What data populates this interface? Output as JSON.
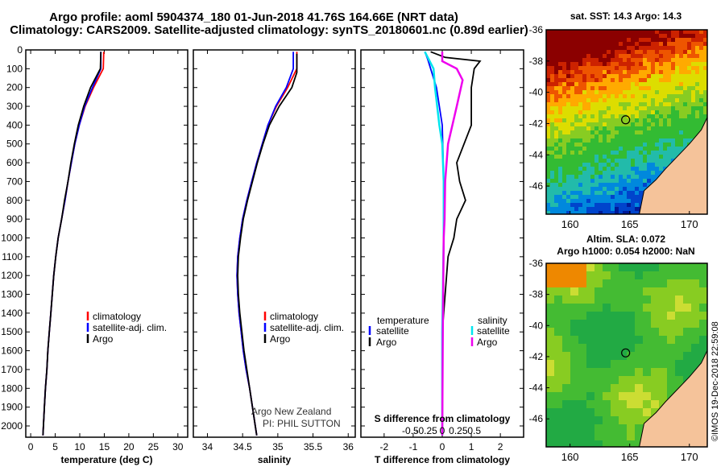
{
  "header": {
    "line1": "Argo profile: aoml 5904374_180 01-Jun-2018 41.76S 164.66E (NRT data)",
    "line2": "Climatology: CARS2009. Satellite-adjusted climatology: synTS_20180601.nc (0.89d earlier)"
  },
  "colors": {
    "climatology": "#ff0000",
    "satellite": "#0000ff",
    "argo": "#000000",
    "salinity_satellite": "#00e5ee",
    "salinity_argo": "#ee00ee"
  },
  "depth_axis": {
    "ticks": [
      "0",
      "100",
      "200",
      "300",
      "400",
      "500",
      "600",
      "700",
      "800",
      "900",
      "1000",
      "1100",
      "1200",
      "1300",
      "1400",
      "1500",
      "1600",
      "1700",
      "1800",
      "1900",
      "2000"
    ],
    "ylim": [
      0,
      2060
    ]
  },
  "chart_data": [
    {
      "type": "line",
      "panel": "temperature",
      "xlabel": "temperature (deg C)",
      "xlim": [
        -1,
        32
      ],
      "xticks": [
        "0",
        "5",
        "10",
        "15",
        "20",
        "25",
        "30"
      ],
      "legend": [
        "climatology",
        "satellite-adj. clim.",
        "Argo"
      ],
      "series": [
        {
          "name": "climatology",
          "color": "red",
          "points": [
            [
              14.9,
              10
            ],
            [
              14.8,
              100
            ],
            [
              12.8,
              200
            ],
            [
              11.1,
              300
            ],
            [
              9.9,
              400
            ],
            [
              9.0,
              500
            ],
            [
              8.3,
              600
            ],
            [
              7.6,
              700
            ],
            [
              7.0,
              800
            ],
            [
              6.3,
              900
            ],
            [
              5.6,
              1000
            ],
            [
              5.1,
              1100
            ],
            [
              4.7,
              1200
            ],
            [
              4.4,
              1300
            ],
            [
              4.1,
              1400
            ],
            [
              3.8,
              1500
            ],
            [
              3.5,
              1600
            ],
            [
              3.3,
              1700
            ],
            [
              3.0,
              1800
            ],
            [
              2.8,
              1900
            ],
            [
              2.6,
              2000
            ],
            [
              2.5,
              2050
            ]
          ]
        },
        {
          "name": "satellite-adj. clim.",
          "color": "blue",
          "points": [
            [
              14.3,
              10
            ],
            [
              14.3,
              100
            ],
            [
              12.6,
              200
            ],
            [
              11.0,
              300
            ],
            [
              9.9,
              400
            ],
            [
              9.0,
              500
            ],
            [
              8.3,
              600
            ],
            [
              7.6,
              700
            ],
            [
              7.0,
              800
            ],
            [
              6.3,
              900
            ],
            [
              5.6,
              1000
            ],
            [
              5.1,
              1100
            ],
            [
              4.7,
              1200
            ],
            [
              4.4,
              1300
            ],
            [
              4.1,
              1400
            ],
            [
              3.8,
              1500
            ],
            [
              3.5,
              1600
            ],
            [
              3.3,
              1700
            ],
            [
              3.0,
              1800
            ],
            [
              2.8,
              1900
            ],
            [
              2.6,
              2000
            ],
            [
              2.5,
              2050
            ]
          ]
        },
        {
          "name": "Argo",
          "color": "black",
          "points": [
            [
              14.3,
              10
            ],
            [
              14.2,
              100
            ],
            [
              12.2,
              200
            ],
            [
              10.8,
              300
            ],
            [
              9.7,
              400
            ],
            [
              8.9,
              500
            ],
            [
              8.2,
              600
            ],
            [
              7.6,
              700
            ],
            [
              6.9,
              800
            ],
            [
              6.3,
              900
            ],
            [
              5.6,
              1000
            ],
            [
              5.1,
              1100
            ],
            [
              4.7,
              1200
            ],
            [
              4.4,
              1300
            ],
            [
              4.1,
              1400
            ],
            [
              3.8,
              1500
            ],
            [
              3.5,
              1600
            ],
            [
              3.3,
              1700
            ],
            [
              3.0,
              1800
            ],
            [
              2.8,
              1900
            ],
            [
              2.6,
              2000
            ],
            [
              2.5,
              2050
            ]
          ]
        }
      ]
    },
    {
      "type": "line",
      "panel": "salinity",
      "xlabel": "salinity",
      "xlim": [
        33.8,
        36.1
      ],
      "xticks": [
        "34",
        "34.5",
        "35",
        "35.5",
        "36"
      ],
      "legend": [
        "climatology",
        "satellite-adj. clim.",
        "Argo"
      ],
      "annotations": [
        "Argo New Zealand",
        "PI: PHIL SUTTON"
      ],
      "series": [
        {
          "name": "climatology",
          "color": "red",
          "points": [
            [
              35.27,
              10
            ],
            [
              35.27,
              100
            ],
            [
              35.14,
              200
            ],
            [
              34.98,
              300
            ],
            [
              34.86,
              400
            ],
            [
              34.78,
              500
            ],
            [
              34.7,
              600
            ],
            [
              34.63,
              700
            ],
            [
              34.56,
              800
            ],
            [
              34.5,
              900
            ],
            [
              34.46,
              1000
            ],
            [
              34.43,
              1100
            ],
            [
              34.42,
              1200
            ],
            [
              34.43,
              1300
            ],
            [
              34.45,
              1400
            ],
            [
              34.48,
              1500
            ],
            [
              34.51,
              1600
            ],
            [
              34.55,
              1700
            ],
            [
              34.6,
              1800
            ],
            [
              34.64,
              1900
            ],
            [
              34.68,
              2000
            ],
            [
              34.7,
              2050
            ]
          ]
        },
        {
          "name": "satellite-adj. clim.",
          "color": "blue",
          "points": [
            [
              35.22,
              10
            ],
            [
              35.22,
              100
            ],
            [
              35.12,
              200
            ],
            [
              34.97,
              300
            ],
            [
              34.86,
              400
            ],
            [
              34.78,
              500
            ],
            [
              34.7,
              600
            ],
            [
              34.63,
              700
            ],
            [
              34.56,
              800
            ],
            [
              34.5,
              900
            ],
            [
              34.46,
              1000
            ],
            [
              34.43,
              1100
            ],
            [
              34.42,
              1200
            ],
            [
              34.43,
              1300
            ],
            [
              34.45,
              1400
            ],
            [
              34.48,
              1500
            ],
            [
              34.51,
              1600
            ],
            [
              34.55,
              1700
            ],
            [
              34.6,
              1800
            ],
            [
              34.64,
              1900
            ],
            [
              34.68,
              2000
            ],
            [
              34.7,
              2050
            ]
          ]
        },
        {
          "name": "Argo",
          "color": "black",
          "points": [
            [
              35.27,
              20
            ],
            [
              35.27,
              120
            ],
            [
              35.2,
              200
            ],
            [
              35.02,
              300
            ],
            [
              34.88,
              400
            ],
            [
              34.79,
              500
            ],
            [
              34.71,
              600
            ],
            [
              34.64,
              700
            ],
            [
              34.57,
              800
            ],
            [
              34.51,
              900
            ],
            [
              34.47,
              1000
            ],
            [
              34.44,
              1100
            ],
            [
              34.43,
              1200
            ],
            [
              34.44,
              1300
            ],
            [
              34.46,
              1400
            ],
            [
              34.49,
              1500
            ],
            [
              34.52,
              1600
            ],
            [
              34.56,
              1700
            ],
            [
              34.6,
              1800
            ],
            [
              34.64,
              1900
            ],
            [
              34.68,
              2000
            ],
            [
              34.7,
              2050
            ]
          ]
        }
      ]
    },
    {
      "type": "line",
      "panel": "difference",
      "xlabel": "T difference from climatology",
      "secondary_xlabel": "S difference from climatology",
      "xlim": [
        -2.8,
        2.8
      ],
      "xticks": [
        "-2",
        "-1",
        "0",
        "1",
        "2"
      ],
      "secondary_xticks": [
        "-0.5",
        "-0.25",
        "0",
        "0.25",
        "0.5"
      ],
      "legend_temperature": {
        "title": "temperature",
        "items": [
          "satellite",
          "Argo"
        ]
      },
      "legend_salinity": {
        "title": "salinity",
        "items": [
          "satellite",
          "Argo"
        ]
      },
      "series": [
        {
          "name": "satellite",
          "color": "blue",
          "points": [
            [
              -0.6,
              10
            ],
            [
              -0.5,
              50
            ],
            [
              -0.2,
              200
            ],
            [
              0.0,
              400
            ],
            [
              0.05,
              700
            ],
            [
              0.05,
              1000
            ],
            [
              0.02,
              1500
            ],
            [
              0.0,
              2050
            ]
          ]
        },
        {
          "name": "Argo",
          "color": "black",
          "points": [
            [
              -0.4,
              10
            ],
            [
              0.1,
              40
            ],
            [
              1.3,
              60
            ],
            [
              1.1,
              100
            ],
            [
              1.0,
              200
            ],
            [
              1.0,
              400
            ],
            [
              0.5,
              600
            ],
            [
              0.6,
              700
            ],
            [
              0.8,
              800
            ],
            [
              0.5,
              900
            ],
            [
              0.4,
              1000
            ],
            [
              0.2,
              1100
            ],
            [
              0.1,
              1300
            ],
            [
              0.0,
              1500
            ],
            [
              0.0,
              2050
            ]
          ]
        },
        {
          "name": "satellite",
          "color": "cyan",
          "points": [
            [
              -0.6,
              10
            ],
            [
              -0.5,
              40
            ],
            [
              -0.3,
              100
            ],
            [
              -0.25,
              200
            ],
            [
              -0.1,
              400
            ],
            [
              0.0,
              500
            ],
            [
              0.05,
              700
            ],
            [
              0.05,
              1000
            ],
            [
              0.0,
              1500
            ],
            [
              0.0,
              2050
            ]
          ]
        },
        {
          "name": "Argo",
          "color": "magenta",
          "points": [
            [
              0.0,
              10
            ],
            [
              0.0,
              60
            ],
            [
              0.5,
              100
            ],
            [
              0.7,
              160
            ],
            [
              0.5,
              300
            ],
            [
              0.2,
              500
            ],
            [
              0.1,
              700
            ],
            [
              0.08,
              900
            ],
            [
              0.05,
              1000
            ],
            [
              0.02,
              1500
            ],
            [
              0.0,
              2050
            ]
          ]
        }
      ]
    },
    {
      "type": "heatmap",
      "panel": "sst-map",
      "title": "sat. SST: 14.3 Argo: 14.3",
      "xticks": [
        "160",
        "165",
        "170"
      ],
      "yticks": [
        "-36",
        "-38",
        "-40",
        "-42",
        "-44",
        "-46"
      ],
      "xlim": [
        158,
        171.5
      ],
      "ylim": [
        -47.8,
        -36
      ],
      "float_position": {
        "lon": 164.66,
        "lat": -41.76
      }
    },
    {
      "type": "heatmap",
      "panel": "sla-map",
      "title_line1": "Altim. SLA: 0.072",
      "title_line2": "Argo h1000: 0.054 h2000: NaN",
      "xticks": [
        "160",
        "165",
        "170"
      ],
      "yticks": [
        "-36",
        "-38",
        "-40",
        "-42",
        "-44",
        "-46"
      ],
      "xlim": [
        158,
        171.5
      ],
      "ylim": [
        -47.8,
        -36
      ],
      "float_position": {
        "lon": 164.66,
        "lat": -41.76
      }
    }
  ],
  "watermark": "©IMOS 19-Dec-2018 22:59:08"
}
